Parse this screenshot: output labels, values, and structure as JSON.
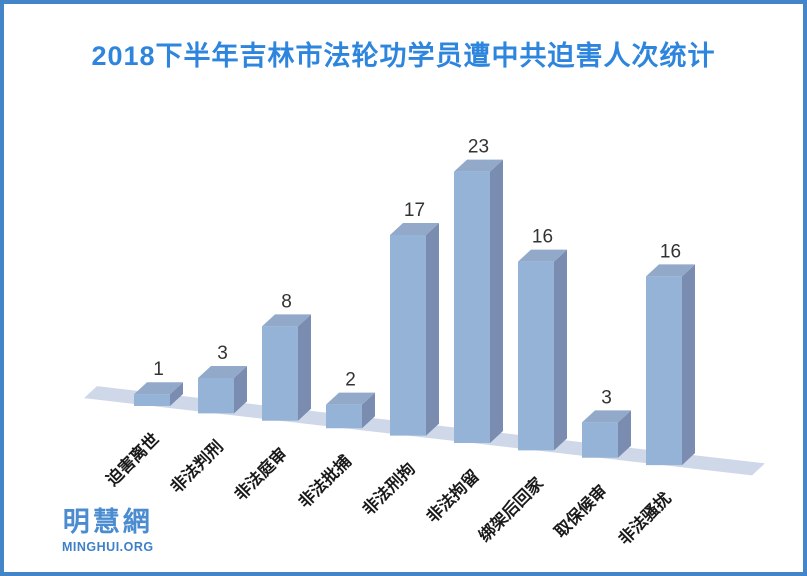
{
  "page": {
    "background": "#ffffff",
    "border_color": "#4385C8"
  },
  "title": {
    "text": "2018下半年吉林市法轮功学员遭中共迫害人次统计",
    "color": "#2E85DD"
  },
  "logo": {
    "cn": "明慧網",
    "en": "MINGHUI.ORG",
    "color": "#4A8CCF"
  },
  "chart_data": {
    "type": "bar",
    "style": "3d-column",
    "title": "2018下半年吉林市法轮功学员遭中共迫害人次统计",
    "categories": [
      "迫害离世",
      "非法判刑",
      "非法庭审",
      "非法批捕",
      "非法刑拘",
      "非法拘留",
      "绑架后回家",
      "取保候审",
      "非法骚扰"
    ],
    "values": [
      1,
      3,
      8,
      2,
      17,
      23,
      16,
      3,
      16
    ],
    "data_labels": true,
    "xlabel": "",
    "ylabel": "",
    "ylim": [
      0,
      25
    ],
    "grid": false,
    "legend": false,
    "colors": {
      "bar_front": "#95B3D7",
      "bar_side": "#7A8DB0",
      "bar_top": "#92A9C9",
      "bar_edge": "#8AA5C8",
      "floor": "#CFD8E9",
      "value_label": "#333333",
      "category_label": "#1a1a1a"
    }
  }
}
